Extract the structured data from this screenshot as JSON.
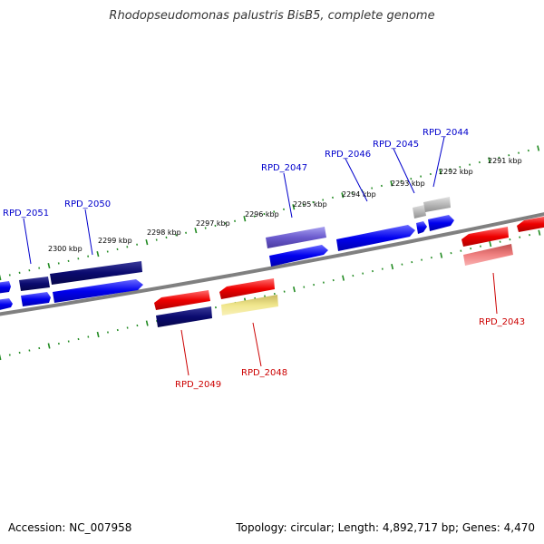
{
  "title": "Rhodopseudomonas palustris BisB5, complete genome",
  "footer": {
    "accession": "Accession: NC_007958",
    "topology": "Topology: circular; Length: 4,892,717 bp; Genes: 4,470"
  },
  "kbp_labels": [
    "2300 kbp",
    "2299 kbp",
    "2298 kbp",
    "2297 kbp",
    "2296 kbp",
    "2295 kbp",
    "2294 kbp",
    "2293 kbp",
    "2292 kbp",
    "2291 kbp"
  ],
  "gene_labels": {
    "RPD_2051": "RPD_2051",
    "RPD_2050": "RPD_2050",
    "RPD_2047": "RPD_2047",
    "RPD_2046": "RPD_2046",
    "RPD_2045": "RPD_2045",
    "RPD_2044": "RPD_2044",
    "RPD_2049": "RPD_2049",
    "RPD_2048": "RPD_2048",
    "RPD_2043": "RPD_2043"
  },
  "colors": {
    "backbone": "#808080",
    "ticks": "#228b22",
    "blue": "#0000ee",
    "navy": "#0a0a6e",
    "red": "#ee0000",
    "purple": "#6a5acd",
    "khaki": "#f0e68c",
    "grey": "#b0b0b0",
    "pink": "#f08080",
    "label_top": "#0000cc",
    "label_bottom": "#cc0000"
  }
}
